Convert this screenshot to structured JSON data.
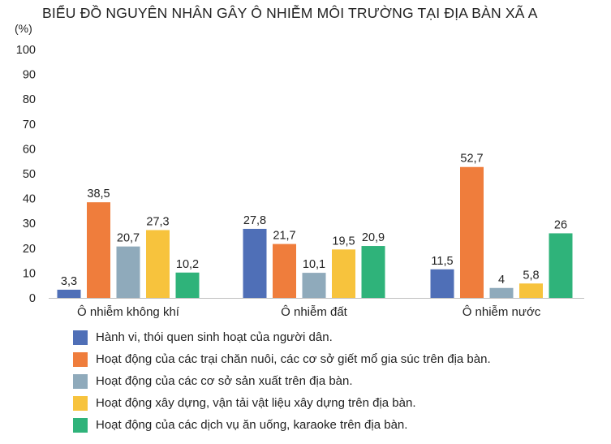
{
  "chart_data": {
    "type": "bar",
    "title": "BIỂU ĐỒ NGUYÊN NHÂN GÂY Ô NHIỄM MÔI TRƯỜNG TẠI ĐỊA BÀN XÃ A",
    "ylabel": "(%)",
    "xlabel": "",
    "ylim": [
      0,
      100
    ],
    "yticks": [
      0,
      10,
      20,
      30,
      40,
      50,
      60,
      70,
      80,
      90,
      100
    ],
    "grid": false,
    "legend_position": "bottom",
    "categories": [
      "Ô nhiễm không khí",
      "Ô nhiễm đất",
      "Ô nhiễm nước"
    ],
    "series": [
      {
        "name": "Hành vi, thói quen sinh hoạt của người dân.",
        "values": [
          3.3,
          27.8,
          11.5
        ],
        "labels": [
          "3,3",
          "27,8",
          "11,5"
        ],
        "color": "#4f6fb7"
      },
      {
        "name": "Hoạt động của các trại chăn nuôi, các cơ sở giết mổ gia súc trên địa bàn.",
        "values": [
          38.5,
          21.7,
          52.7
        ],
        "labels": [
          "38,5",
          "21,7",
          "52,7"
        ],
        "color": "#ef7d3c"
      },
      {
        "name": "Hoạt động của các cơ sở sản xuất trên địa bàn.",
        "values": [
          20.7,
          10.1,
          4
        ],
        "labels": [
          "20,7",
          "10,1",
          "4"
        ],
        "color": "#8faabb"
      },
      {
        "name": "Hoạt động xây dựng, vận tải vật liệu xây dựng trên địa bàn.",
        "values": [
          27.3,
          19.5,
          5.8
        ],
        "labels": [
          "27,3",
          "19,5",
          "5,8"
        ],
        "color": "#f7c33d"
      },
      {
        "name": "Hoạt động của các dịch vụ ăn uống, karaoke trên địa bàn.",
        "values": [
          10.2,
          20.9,
          26
        ],
        "labels": [
          "10,2",
          "20,9",
          "26"
        ],
        "color": "#2fb37a"
      }
    ]
  }
}
